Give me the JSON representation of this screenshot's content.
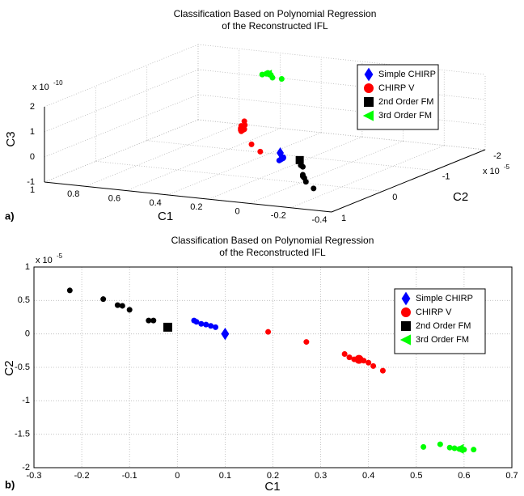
{
  "chart_data": [
    {
      "type": "scatter3d",
      "panel": "a)",
      "title": [
        "Classification Based on Polynomial Regression",
        "of the Reconstructed IFL"
      ],
      "xlabel": "C1",
      "ylabel": "C2",
      "zlabel": "C3",
      "y_multiplier": {
        "base": "x 10",
        "exp": "-5"
      },
      "z_multiplier": {
        "base": "x 10",
        "exp": "-10"
      },
      "xlim": [
        -0.4,
        1
      ],
      "ylim": [
        -2,
        1
      ],
      "zlim": [
        -1,
        2
      ],
      "xticks": [
        1,
        0.8,
        0.6,
        0.4,
        0.2,
        0,
        -0.2,
        -0.4
      ],
      "yticks": [
        -2,
        -1,
        0,
        1
      ],
      "zticks": [
        -1,
        0,
        1,
        2
      ],
      "grid": true,
      "legend": "upper right",
      "series": [
        {
          "name": "Simple CHIRP",
          "color": "#0000ff",
          "marker": "diamond",
          "x": [
            0.035,
            0.04,
            0.05,
            0.06,
            0.07,
            0.08
          ],
          "y": [
            0.2,
            0.18,
            0.15,
            0.14,
            0.12,
            0.1
          ],
          "z": [
            0.15,
            0.1,
            0.05,
            0,
            -0.05,
            -0.1
          ],
          "mean": {
            "x": 0.1,
            "y": 0,
            "z": 0.1
          }
        },
        {
          "name": "CHIRP V",
          "color": "#ff0000",
          "marker": "circle",
          "x": [
            0.19,
            0.27,
            0.35,
            0.36,
            0.37,
            0.39,
            0.4,
            0.41,
            0.43
          ],
          "y": [
            0.03,
            -0.12,
            -0.3,
            -0.35,
            -0.38,
            -0.4,
            -0.43,
            -0.48,
            -0.55
          ],
          "z": [
            0.1,
            0.2,
            0.9,
            0.7,
            0.5,
            0.6,
            0.4,
            0.3,
            0.35
          ],
          "mean": {
            "x": 0.38,
            "y": -0.38,
            "z": 0.5
          }
        },
        {
          "name": "2nd Order FM",
          "color": "#000000",
          "marker": "square",
          "x": [
            -0.225,
            -0.155,
            -0.125,
            -0.115,
            -0.1,
            -0.06,
            -0.05
          ],
          "y": [
            0.65,
            0.52,
            0.43,
            0.42,
            0.36,
            0.2,
            0.2
          ],
          "z": [
            -0.5,
            -0.4,
            -0.35,
            -0.3,
            -0.3,
            -0.15,
            -0.1
          ],
          "mean": {
            "x": -0.02,
            "y": 0.1,
            "z": 0
          }
        },
        {
          "name": "3rd Order FM",
          "color": "#00ff00",
          "marker": "triangle",
          "x": [
            0.515,
            0.55,
            0.57,
            0.58,
            0.59,
            0.6,
            0.62
          ],
          "y": [
            -1.69,
            -1.65,
            -1.7,
            -1.71,
            -1.72,
            -1.73,
            -1.73
          ],
          "z": [
            1.3,
            1.35,
            1.4,
            1.4,
            1.45,
            1.4,
            1.35
          ],
          "mean": {
            "x": 0.59,
            "y": -1.72,
            "z": 1.4
          }
        }
      ]
    },
    {
      "type": "scatter",
      "panel": "b)",
      "title": [
        "Classification Based on Polynomial Regression",
        "of the Reconstructed IFL"
      ],
      "xlabel": "C1",
      "ylabel": "C2",
      "y_multiplier": {
        "base": "x 10",
        "exp": "-5"
      },
      "xlim": [
        -0.3,
        0.7
      ],
      "ylim": [
        -2,
        1
      ],
      "xticks": [
        -0.3,
        -0.2,
        -0.1,
        0,
        0.1,
        0.2,
        0.3,
        0.4,
        0.5,
        0.6,
        0.7
      ],
      "yticks": [
        -2,
        -1.5,
        -1,
        -0.5,
        0,
        0.5,
        1
      ],
      "grid": true,
      "legend": "upper right",
      "series": [
        {
          "name": "Simple CHIRP",
          "color": "#0000ff",
          "marker": "diamond",
          "x": [
            0.035,
            0.04,
            0.05,
            0.06,
            0.07,
            0.08
          ],
          "y": [
            0.2,
            0.18,
            0.15,
            0.14,
            0.12,
            0.1
          ],
          "mean": {
            "x": 0.1,
            "y": 0
          }
        },
        {
          "name": "CHIRP V",
          "color": "#ff0000",
          "marker": "circle",
          "x": [
            0.19,
            0.27,
            0.35,
            0.36,
            0.37,
            0.39,
            0.4,
            0.41,
            0.43
          ],
          "y": [
            0.03,
            -0.12,
            -0.3,
            -0.35,
            -0.38,
            -0.4,
            -0.43,
            -0.48,
            -0.55
          ],
          "mean": {
            "x": 0.38,
            "y": -0.38
          }
        },
        {
          "name": "2nd Order FM",
          "color": "#000000",
          "marker": "square",
          "x": [
            -0.225,
            -0.155,
            -0.125,
            -0.115,
            -0.1,
            -0.06,
            -0.05
          ],
          "y": [
            0.65,
            0.52,
            0.43,
            0.42,
            0.36,
            0.2,
            0.2
          ],
          "mean": {
            "x": -0.02,
            "y": 0.1
          }
        },
        {
          "name": "3rd Order FM",
          "color": "#00ff00",
          "marker": "triangle",
          "x": [
            0.515,
            0.55,
            0.57,
            0.58,
            0.59,
            0.6,
            0.62
          ],
          "y": [
            -1.69,
            -1.65,
            -1.7,
            -1.71,
            -1.72,
            -1.73,
            -1.73
          ],
          "mean": {
            "x": 0.59,
            "y": -1.72
          }
        }
      ]
    }
  ]
}
